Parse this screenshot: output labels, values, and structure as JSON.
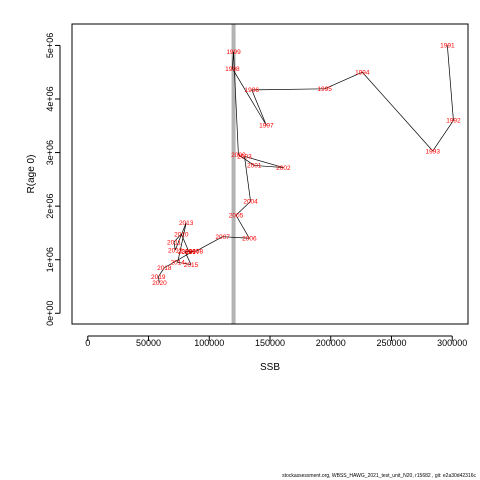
{
  "footer": "stockassessment.org, WBSS_HAWG_2021_test_unit_N20, r15682 , git: e2a30d42316c",
  "chart_data": {
    "type": "line",
    "xlabel": "SSB",
    "ylabel": "R(age 0)",
    "xlim": [
      -13000,
      313000
    ],
    "ylim": [
      -200000,
      5400000
    ],
    "xticks": [
      0,
      50000,
      100000,
      150000,
      200000,
      250000,
      300000
    ],
    "xtick_labels": [
      "0",
      "50000",
      "100000",
      "150000",
      "200000",
      "250000",
      "300000"
    ],
    "yticks": [
      0,
      1000000,
      2000000,
      3000000,
      4000000,
      5000000
    ],
    "ytick_labels": [
      "0e+00",
      "1e+06",
      "2e+06",
      "3e+06",
      "4e+06",
      "5e+06"
    ],
    "reference_line": {
      "x": 120000,
      "color": "#b3b3b3"
    },
    "line_color": "#000000",
    "label_color": "#ff0000",
    "points": [
      {
        "year": "1991",
        "x": 296000,
        "y": 5000000
      },
      {
        "year": "1992",
        "x": 301000,
        "y": 3600000
      },
      {
        "year": "1993",
        "x": 284000,
        "y": 3030000
      },
      {
        "year": "1994",
        "x": 226000,
        "y": 4500000
      },
      {
        "year": "1995",
        "x": 195000,
        "y": 4190000
      },
      {
        "year": "1996",
        "x": 135000,
        "y": 4170000
      },
      {
        "year": "1997",
        "x": 147000,
        "y": 3510000
      },
      {
        "year": "1998",
        "x": 119000,
        "y": 4570000
      },
      {
        "year": "1999",
        "x": 120000,
        "y": 4880000
      },
      {
        "year": "2000",
        "x": 124000,
        "y": 2960000
      },
      {
        "year": "2001",
        "x": 137000,
        "y": 2760000
      },
      {
        "year": "2002",
        "x": 161000,
        "y": 2720000
      },
      {
        "year": "2003",
        "x": 129000,
        "y": 2930000
      },
      {
        "year": "2004",
        "x": 134000,
        "y": 2090000
      },
      {
        "year": "2005",
        "x": 122000,
        "y": 1830000
      },
      {
        "year": "2006",
        "x": 133000,
        "y": 1400000
      },
      {
        "year": "2007",
        "x": 111000,
        "y": 1430000
      },
      {
        "year": "2008",
        "x": 89000,
        "y": 1160000
      },
      {
        "year": "2009",
        "x": 83000,
        "y": 1160000
      },
      {
        "year": "2010",
        "x": 77000,
        "y": 1480000
      },
      {
        "year": "2011",
        "x": 71000,
        "y": 1330000
      },
      {
        "year": "2012",
        "x": 72000,
        "y": 1180000
      },
      {
        "year": "2013",
        "x": 81000,
        "y": 1690000
      },
      {
        "year": "2014",
        "x": 74000,
        "y": 950000
      },
      {
        "year": "2015",
        "x": 85000,
        "y": 910000
      },
      {
        "year": "2016",
        "x": 80000,
        "y": 1150000
      },
      {
        "year": "2017",
        "x": 86000,
        "y": 1150000
      },
      {
        "year": "2018",
        "x": 63000,
        "y": 850000
      },
      {
        "year": "2019",
        "x": 58000,
        "y": 680000
      },
      {
        "year": "2020",
        "x": 59000,
        "y": 570000
      }
    ]
  }
}
